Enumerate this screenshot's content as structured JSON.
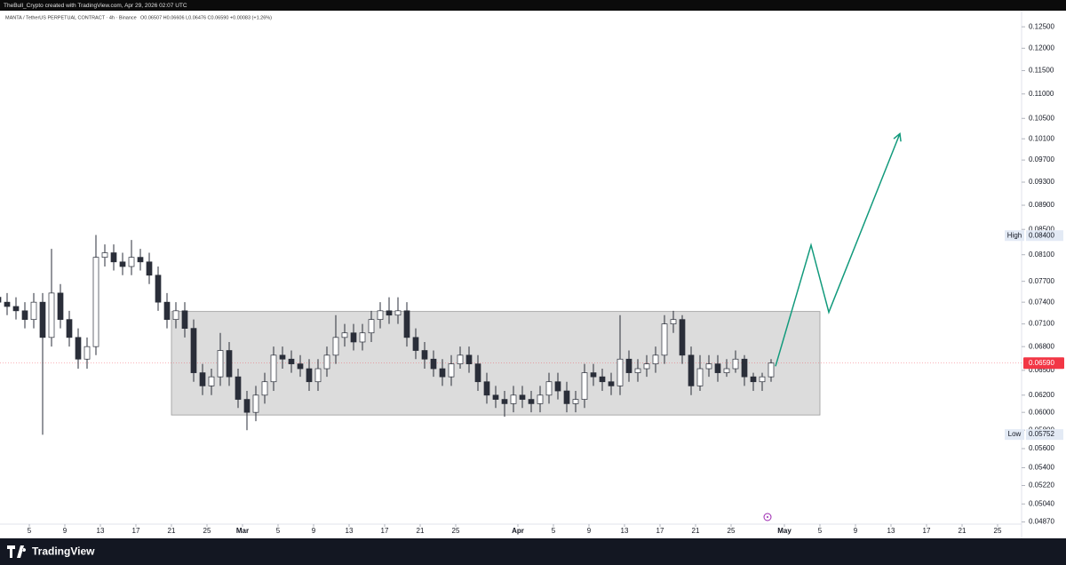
{
  "header": {
    "credit": "TheBull_Crypto created with TradingView.com, Apr 29, 2026 02:07 UTC",
    "symbol": "MANTA / TetherUS PERPETUAL CONTRACT · 4h · Binance",
    "ohlc": "O0.06507 H0.06606 L0.06476 C0.06590 +0.00083 (+1.26%)"
  },
  "footer": {
    "brand": "TradingView"
  },
  "chart_data": {
    "type": "candlestick",
    "log_scale": true,
    "up_color": "#ffffff",
    "down_color": "#2a2e39",
    "wick_color": "#2a2e39",
    "dates": [
      "Feb 1",
      "Feb 2",
      "Feb 3",
      "Feb 4",
      "Feb 5",
      "Feb 6",
      "Feb 7",
      "Feb 8",
      "Feb 9",
      "Feb 10",
      "Feb 11",
      "Feb 12",
      "Feb 13",
      "Feb 14",
      "Feb 15",
      "Feb 16",
      "Feb 17",
      "Feb 18",
      "Feb 19",
      "Feb 20",
      "Feb 21",
      "Feb 22",
      "Feb 23",
      "Feb 24",
      "Feb 25",
      "Feb 26",
      "Feb 27",
      "Feb 28",
      "Mar 1",
      "Mar 2",
      "Mar 3",
      "Mar 4",
      "Mar 5",
      "Mar 6",
      "Mar 7",
      "Mar 8",
      "Mar 9",
      "Mar 10",
      "Mar 11",
      "Mar 12",
      "Mar 13",
      "Mar 14",
      "Mar 15",
      "Mar 16",
      "Mar 17",
      "Mar 18",
      "Mar 19",
      "Mar 20",
      "Mar 21",
      "Mar 22",
      "Mar 23",
      "Mar 24",
      "Mar 25",
      "Mar 26",
      "Mar 27",
      "Mar 28",
      "Mar 29",
      "Mar 30",
      "Mar 31",
      "Apr 1",
      "Apr 2",
      "Apr 3",
      "Apr 4",
      "Apr 5",
      "Apr 6",
      "Apr 7",
      "Apr 8",
      "Apr 9",
      "Apr 10",
      "Apr 11",
      "Apr 12",
      "Apr 13",
      "Apr 14",
      "Apr 15",
      "Apr 16",
      "Apr 17",
      "Apr 18",
      "Apr 19",
      "Apr 20",
      "Apr 21",
      "Apr 22",
      "Apr 23",
      "Apr 24",
      "Apr 25",
      "Apr 26",
      "Apr 27",
      "Apr 28",
      "Apr 29"
    ],
    "open": [
      0.0747,
      0.074,
      0.0734,
      0.0728,
      0.0716,
      0.074,
      0.0692,
      0.0753,
      0.0716,
      0.0692,
      0.0664,
      0.068,
      0.0806,
      0.0813,
      0.0799,
      0.0792,
      0.0806,
      0.0799,
      0.0779,
      0.074,
      0.0716,
      0.0728,
      0.0704,
      0.0647,
      0.0631,
      0.0642,
      0.0675,
      0.0642,
      0.0615,
      0.06,
      0.062,
      0.0636,
      0.0669,
      0.0664,
      0.0658,
      0.0652,
      0.0636,
      0.0652,
      0.0669,
      0.0692,
      0.0698,
      0.0686,
      0.0698,
      0.0716,
      0.0728,
      0.0722,
      0.0728,
      0.0692,
      0.0675,
      0.0664,
      0.0652,
      0.0642,
      0.0658,
      0.0669,
      0.0658,
      0.0636,
      0.062,
      0.0615,
      0.061,
      0.062,
      0.0615,
      0.061,
      0.062,
      0.0636,
      0.0625,
      0.061,
      0.0615,
      0.0647,
      0.0642,
      0.0636,
      0.0631,
      0.0664,
      0.0647,
      0.0652,
      0.0658,
      0.0669,
      0.071,
      0.0716,
      0.0669,
      0.0631,
      0.0652,
      0.0658,
      0.0647,
      0.0652,
      0.0664,
      0.0642,
      0.0636,
      0.0642
    ],
    "high": [
      0.0759,
      0.0753,
      0.0747,
      0.074,
      0.0753,
      0.0753,
      0.0819,
      0.0766,
      0.0728,
      0.0704,
      0.0692,
      0.0841,
      0.0826,
      0.0826,
      0.0813,
      0.0833,
      0.0819,
      0.0813,
      0.0792,
      0.0753,
      0.074,
      0.074,
      0.0716,
      0.0658,
      0.0652,
      0.0698,
      0.0686,
      0.0652,
      0.0625,
      0.0631,
      0.0647,
      0.068,
      0.068,
      0.0675,
      0.0669,
      0.0664,
      0.0664,
      0.068,
      0.0722,
      0.071,
      0.071,
      0.071,
      0.0728,
      0.074,
      0.0747,
      0.0747,
      0.074,
      0.0704,
      0.0686,
      0.0675,
      0.0664,
      0.0669,
      0.068,
      0.068,
      0.0669,
      0.0647,
      0.0631,
      0.0625,
      0.0631,
      0.0631,
      0.0625,
      0.0631,
      0.0647,
      0.0647,
      0.0636,
      0.0625,
      0.0658,
      0.0658,
      0.0652,
      0.0647,
      0.0722,
      0.0675,
      0.0664,
      0.0669,
      0.068,
      0.0722,
      0.0728,
      0.0722,
      0.068,
      0.0669,
      0.0669,
      0.0669,
      0.0664,
      0.0675,
      0.0669,
      0.0647,
      0.0647,
      0.0664
    ],
    "low": [
      0.0728,
      0.0722,
      0.0716,
      0.0704,
      0.0704,
      0.0575,
      0.068,
      0.0704,
      0.068,
      0.0652,
      0.0652,
      0.0669,
      0.0792,
      0.0786,
      0.0779,
      0.0779,
      0.0786,
      0.0766,
      0.0728,
      0.0704,
      0.0704,
      0.0692,
      0.0636,
      0.062,
      0.062,
      0.0631,
      0.0631,
      0.0605,
      0.058,
      0.059,
      0.061,
      0.0625,
      0.0652,
      0.0647,
      0.0642,
      0.0625,
      0.0625,
      0.0642,
      0.0658,
      0.068,
      0.0675,
      0.0675,
      0.0686,
      0.0704,
      0.071,
      0.071,
      0.068,
      0.0664,
      0.0652,
      0.0642,
      0.0631,
      0.0631,
      0.0652,
      0.0647,
      0.0625,
      0.061,
      0.0605,
      0.0595,
      0.06,
      0.0605,
      0.06,
      0.06,
      0.061,
      0.0615,
      0.06,
      0.06,
      0.0605,
      0.0631,
      0.0625,
      0.062,
      0.062,
      0.0636,
      0.0636,
      0.0642,
      0.0647,
      0.0658,
      0.0698,
      0.0658,
      0.062,
      0.0625,
      0.0642,
      0.0636,
      0.0642,
      0.0647,
      0.0631,
      0.0625,
      0.0625,
      0.0636
    ],
    "close": [
      0.074,
      0.0734,
      0.0728,
      0.0716,
      0.074,
      0.0692,
      0.0753,
      0.0716,
      0.0692,
      0.0664,
      0.068,
      0.0806,
      0.0813,
      0.0799,
      0.0792,
      0.0806,
      0.0799,
      0.0779,
      0.074,
      0.0716,
      0.0728,
      0.0704,
      0.0647,
      0.0631,
      0.0642,
      0.0675,
      0.0642,
      0.0615,
      0.06,
      0.062,
      0.0636,
      0.0669,
      0.0664,
      0.0658,
      0.0652,
      0.0636,
      0.0652,
      0.0669,
      0.0692,
      0.0698,
      0.0686,
      0.0698,
      0.0716,
      0.0728,
      0.0722,
      0.0728,
      0.0692,
      0.0675,
      0.0664,
      0.0652,
      0.0642,
      0.0658,
      0.0669,
      0.0658,
      0.0636,
      0.062,
      0.0615,
      0.061,
      0.062,
      0.0615,
      0.061,
      0.062,
      0.0636,
      0.0625,
      0.061,
      0.0615,
      0.0647,
      0.0642,
      0.0636,
      0.0631,
      0.0664,
      0.0647,
      0.0652,
      0.0658,
      0.0669,
      0.071,
      0.0716,
      0.0669,
      0.0631,
      0.0652,
      0.0658,
      0.0647,
      0.0652,
      0.0664,
      0.0642,
      0.0636,
      0.0642,
      0.0659
    ],
    "xlim": [
      "Feb 1",
      "May 28"
    ],
    "xticks": [
      {
        "value": "Feb 5",
        "label": "5"
      },
      {
        "value": "Feb 9",
        "label": "9"
      },
      {
        "value": "Feb 13",
        "label": "13"
      },
      {
        "value": "Feb 17",
        "label": "17"
      },
      {
        "value": "Feb 21",
        "label": "21"
      },
      {
        "value": "Feb 25",
        "label": "25"
      },
      {
        "value": "Mar 1",
        "label": "Mar"
      },
      {
        "value": "Mar 5",
        "label": "5"
      },
      {
        "value": "Mar 9",
        "label": "9"
      },
      {
        "value": "Mar 13",
        "label": "13"
      },
      {
        "value": "Mar 17",
        "label": "17"
      },
      {
        "value": "Mar 21",
        "label": "21"
      },
      {
        "value": "Mar 25",
        "label": "25"
      },
      {
        "value": "Apr 1",
        "label": "Apr"
      },
      {
        "value": "Apr 5",
        "label": "5"
      },
      {
        "value": "Apr 9",
        "label": "9"
      },
      {
        "value": "Apr 13",
        "label": "13"
      },
      {
        "value": "Apr 17",
        "label": "17"
      },
      {
        "value": "Apr 21",
        "label": "21"
      },
      {
        "value": "Apr 25",
        "label": "25"
      },
      {
        "value": "May 1",
        "label": "May"
      },
      {
        "value": "May 5",
        "label": "5"
      },
      {
        "value": "May 9",
        "label": "9"
      },
      {
        "value": "May 13",
        "label": "13"
      },
      {
        "value": "May 17",
        "label": "17"
      },
      {
        "value": "May 21",
        "label": "21"
      },
      {
        "value": "May 25",
        "label": "25"
      }
    ],
    "ylim": [
      0.0485,
      0.1289
    ],
    "yticks": [
      {
        "value": 0.125,
        "label": "0.12500"
      },
      {
        "value": 0.12,
        "label": "0.12000"
      },
      {
        "value": 0.115,
        "label": "0.11500"
      },
      {
        "value": 0.11,
        "label": "0.11000"
      },
      {
        "value": 0.105,
        "label": "0.10500"
      },
      {
        "value": 0.101,
        "label": "0.10100"
      },
      {
        "value": 0.097,
        "label": "0.09700"
      },
      {
        "value": 0.093,
        "label": "0.09300"
      },
      {
        "value": 0.089,
        "label": "0.08900"
      },
      {
        "value": 0.085,
        "label": "0.08500"
      },
      {
        "value": 0.081,
        "label": "0.08100"
      },
      {
        "value": 0.077,
        "label": "0.07700"
      },
      {
        "value": 0.074,
        "label": "0.07400"
      },
      {
        "value": 0.071,
        "label": "0.07100"
      },
      {
        "value": 0.068,
        "label": "0.06800"
      },
      {
        "value": 0.065,
        "label": "0.06500"
      },
      {
        "value": 0.062,
        "label": "0.06200"
      },
      {
        "value": 0.06,
        "label": "0.06000"
      },
      {
        "value": 0.058,
        "label": "0.05800"
      },
      {
        "value": 0.056,
        "label": "0.05600"
      },
      {
        "value": 0.054,
        "label": "0.05400"
      },
      {
        "value": 0.0522,
        "label": "0.05220"
      },
      {
        "value": 0.0504,
        "label": "0.05040"
      },
      {
        "value": 0.0487,
        "label": "0.04870"
      }
    ],
    "high_mark": {
      "text": "High",
      "value": 0.084,
      "label": "0.08400"
    },
    "low_mark": {
      "text": "Low",
      "value": 0.05752,
      "label": "0.05752"
    },
    "last_price": {
      "value": 0.0659,
      "label": "0.06590",
      "color": "#f23645"
    },
    "range_box": {
      "x": [
        "Feb 21",
        "May 5"
      ],
      "y": [
        0.0597,
        0.0727
      ],
      "color": "#d6d6d6"
    },
    "projection": {
      "x": [
        "Apr 30",
        "May 4",
        "May 6",
        "May 14"
      ],
      "y": [
        0.0655,
        0.0825,
        0.0726,
        0.102
      ],
      "color": "#129a7c"
    }
  }
}
